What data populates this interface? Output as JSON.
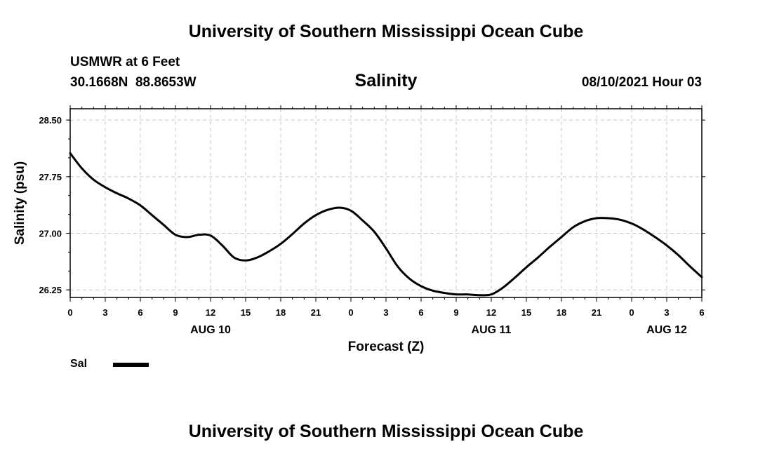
{
  "header": {
    "title": "University of Southern Mississippi Ocean Cube",
    "station": "USMWR at 6 Feet",
    "coords": "30.1668N  88.8653W",
    "chart_title": "Salinity",
    "datetime": "08/10/2021 Hour 03"
  },
  "footer": {
    "title": "University of Southern Mississippi Ocean Cube"
  },
  "legend": {
    "label": "Sal"
  },
  "chart_data": {
    "type": "line",
    "title": "Salinity",
    "xlabel": "Forecast (Z)",
    "ylabel": "Salinity (psu)",
    "x_ticks": [
      "0",
      "3",
      "6",
      "9",
      "12",
      "15",
      "18",
      "21",
      "0",
      "3",
      "6",
      "9",
      "12",
      "15",
      "18",
      "21",
      "0",
      "3",
      "6"
    ],
    "day_labels": [
      {
        "label": "AUG 10",
        "tick_index": 4
      },
      {
        "label": "AUG 11",
        "tick_index": 12
      },
      {
        "label": "AUG 12",
        "tick_index": 17
      }
    ],
    "xlim": [
      0,
      54
    ],
    "ylim": [
      26.15,
      28.65
    ],
    "y_ticks": [
      "28.50",
      "27.75",
      "27.00",
      "26.25"
    ],
    "y_tick_values": [
      28.5,
      27.75,
      27.0,
      26.25
    ],
    "grid": true,
    "legend_position": "bottom-left",
    "series": [
      {
        "name": "Sal",
        "color": "#000000",
        "x": [
          0,
          1,
          2,
          3,
          4,
          5,
          6,
          7,
          8,
          9,
          10,
          11,
          12,
          13,
          14,
          15,
          16,
          17,
          18,
          19,
          20,
          21,
          22,
          23,
          24,
          25,
          26,
          27,
          28,
          29,
          30,
          31,
          32,
          33,
          34,
          35,
          36,
          37,
          38,
          39,
          40,
          41,
          42,
          43,
          44,
          45,
          46,
          47,
          48,
          49,
          50,
          51,
          52,
          53,
          54
        ],
        "values": [
          28.06,
          27.86,
          27.71,
          27.61,
          27.53,
          27.46,
          27.37,
          27.24,
          27.11,
          26.98,
          26.95,
          26.98,
          26.97,
          26.84,
          26.68,
          26.64,
          26.68,
          26.76,
          26.86,
          26.99,
          27.13,
          27.24,
          27.31,
          27.34,
          27.3,
          27.17,
          27.02,
          26.8,
          26.56,
          26.4,
          26.3,
          26.24,
          26.21,
          26.19,
          26.19,
          26.18,
          26.19,
          26.28,
          26.41,
          26.55,
          26.68,
          26.82,
          26.95,
          27.08,
          27.16,
          27.2,
          27.2,
          27.18,
          27.13,
          27.05,
          26.95,
          26.84,
          26.71,
          26.56,
          26.42
        ]
      }
    ]
  }
}
